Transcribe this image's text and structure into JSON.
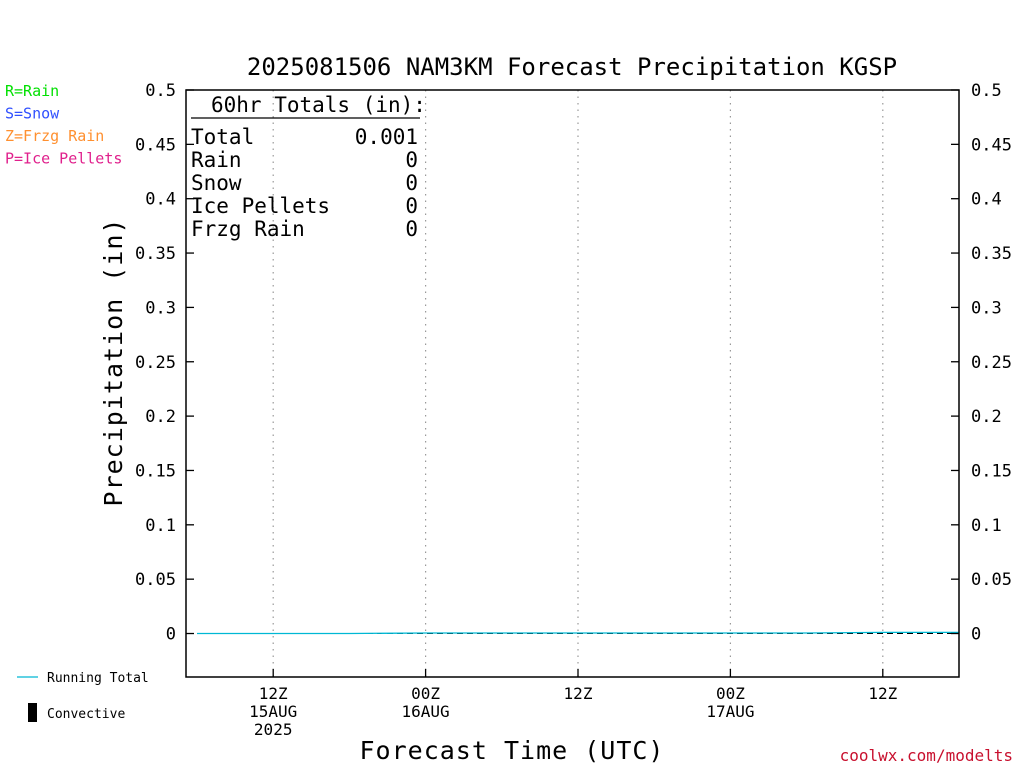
{
  "chart_data": {
    "type": "line",
    "title": "2025081506 NAM3KM Forecast Precipitation KGSP",
    "ylabel": "Precipitation (in)",
    "xlabel": "Forecast Time (UTC)",
    "ylim": [
      -0.04,
      0.5
    ],
    "yticks": [
      0,
      0.05,
      0.1,
      0.15,
      0.2,
      0.25,
      0.3,
      0.35,
      0.4,
      0.45,
      0.5
    ],
    "ytick_labels": [
      "0",
      "0.05",
      "0.1",
      "0.15",
      "0.2",
      "0.25",
      "0.3",
      "0.35",
      "0.4",
      "0.45",
      "0.5"
    ],
    "xlim_hours": [
      0,
      60
    ],
    "x_ticks": [
      {
        "hour": 6,
        "lines": [
          "12Z",
          "15AUG",
          "2025"
        ]
      },
      {
        "hour": 18,
        "lines": [
          "00Z",
          "16AUG"
        ]
      },
      {
        "hour": 30,
        "lines": [
          "12Z"
        ]
      },
      {
        "hour": 42,
        "lines": [
          "00Z",
          "17AUG"
        ]
      },
      {
        "hour": 54,
        "lines": [
          "12Z"
        ]
      }
    ],
    "grid": {
      "x": true,
      "y": false
    },
    "series": [
      {
        "name": "Running Total",
        "color": "#00b8d4",
        "x": [
          0,
          6,
          12,
          18,
          24,
          30,
          36,
          42,
          48,
          54,
          60
        ],
        "y": [
          0,
          0,
          0,
          0.0005,
          0.0005,
          0.0005,
          0.0005,
          0.0005,
          0.0005,
          0.001,
          0.001
        ]
      }
    ],
    "totals_box": {
      "header": "60hr Totals (in):",
      "rows": [
        {
          "label": "Total",
          "value": "0.001"
        },
        {
          "label": "Rain",
          "value": "0"
        },
        {
          "label": "Snow",
          "value": "0"
        },
        {
          "label": "Ice Pellets",
          "value": "0"
        },
        {
          "label": "Frzg Rain",
          "value": "0"
        }
      ]
    },
    "type_legend": [
      {
        "text": "R=Rain",
        "color": "#00e000"
      },
      {
        "text": "S=Snow",
        "color": "#3050ff"
      },
      {
        "text": "Z=Frzg Rain",
        "color": "#ff9030"
      },
      {
        "text": "P=Ice Pellets",
        "color": "#e0208c"
      }
    ],
    "bottom_legend": [
      {
        "text": "Running Total",
        "kind": "line",
        "color": "#00b8d4"
      },
      {
        "text": "Convective",
        "kind": "bar",
        "color": "#000000"
      }
    ]
  },
  "credit": "coolwx.com/modelts"
}
